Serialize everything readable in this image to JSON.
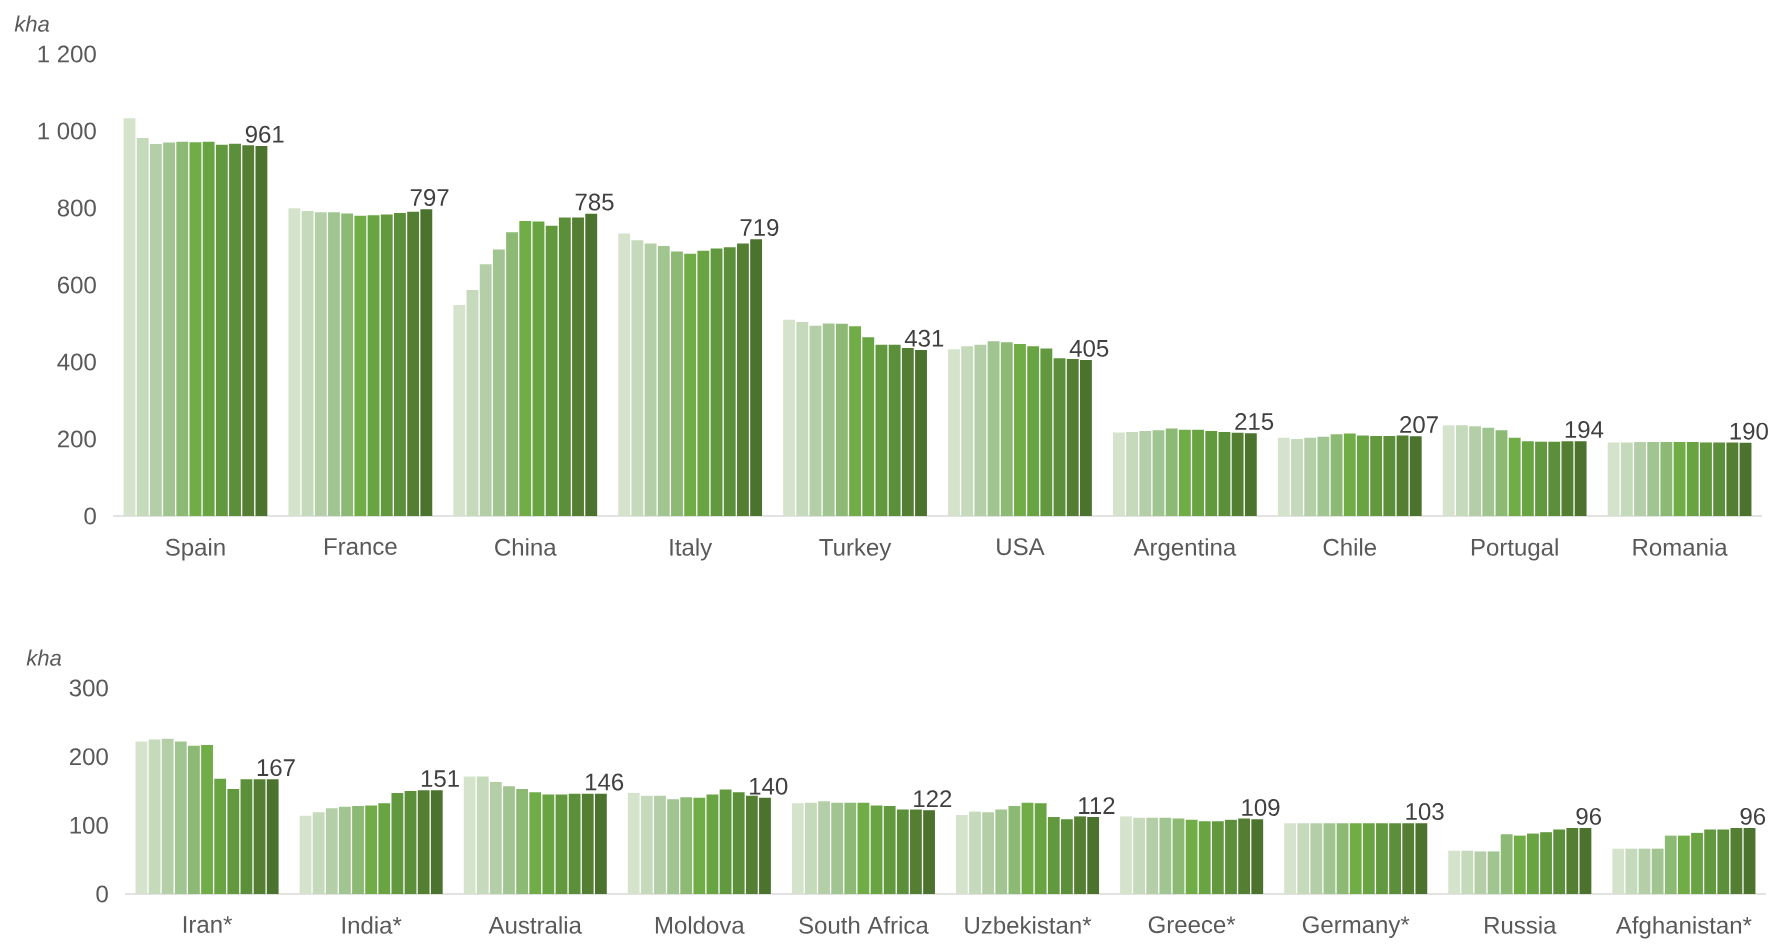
{
  "chart_data": [
    {
      "type": "bar",
      "ylabel": "*kha*",
      "categories": [
        "Spain",
        "France",
        "China",
        "Italy",
        "Turkey",
        "USA",
        "Argentina",
        "Chile",
        "Portugal",
        "Romania"
      ],
      "ylim": [
        0,
        1200
      ],
      "yticks": [
        0,
        200,
        400,
        600,
        800,
        {
          "value": 1000,
          "label": "1 000"
        },
        {
          "value": 1200,
          "label": "1 200"
        }
      ],
      "series": [
        {
          "color": "#d5e3cc",
          "values": [
            1033,
            799,
            548,
            734,
            510,
            433,
            217,
            203,
            236,
            191
          ]
        },
        {
          "color": "#c5d9bb",
          "values": [
            982,
            792,
            587,
            716,
            504,
            441,
            218,
            200,
            236,
            191
          ]
        },
        {
          "color": "#b4cfa7",
          "values": [
            966,
            789,
            654,
            708,
            494,
            445,
            221,
            203,
            233,
            192
          ]
        },
        {
          "color": "#a1c590",
          "values": [
            970,
            789,
            692,
            701,
            500,
            454,
            223,
            206,
            229,
            192
          ]
        },
        {
          "color": "#8cba74",
          "values": [
            972,
            786,
            737,
            687,
            499,
            451,
            227,
            212,
            223,
            192
          ]
        },
        {
          "color": "#70ad47",
          "values": [
            971,
            780,
            766,
            681,
            493,
            447,
            224,
            214,
            203,
            192
          ]
        },
        {
          "color": "#69a443",
          "values": [
            972,
            781,
            765,
            689,
            464,
            441,
            224,
            209,
            194,
            192
          ]
        },
        {
          "color": "#62983e",
          "values": [
            964,
            783,
            754,
            695,
            445,
            435,
            221,
            208,
            193,
            191
          ]
        },
        {
          "color": "#5c8f3a",
          "values": [
            967,
            787,
            775,
            698,
            445,
            410,
            218,
            208,
            193,
            191
          ]
        },
        {
          "color": "#547f33",
          "values": [
            963,
            790,
            775,
            708,
            436,
            408,
            216,
            209,
            194,
            191
          ]
        },
        {
          "color": "#4b732d",
          "values": [
            961,
            797,
            785,
            719,
            431,
            405,
            215,
            207,
            194,
            190
          ],
          "value_labels": [
            "961",
            "797",
            "785",
            "719",
            "431",
            "405",
            "215",
            "207",
            "194",
            "190"
          ]
        }
      ]
    },
    {
      "type": "bar",
      "ylabel": "*kha*",
      "categories": [
        "Iran*",
        "India*",
        "Australia",
        "Moldova",
        "South Africa",
        "Uzbekistan*",
        "Greece*",
        "Germany*",
        "Russia",
        "Afghanistan*"
      ],
      "ylim": [
        0,
        300
      ],
      "yticks": [
        0,
        100,
        200,
        300
      ],
      "series": [
        {
          "color": "#d5e3cc",
          "values": [
            222,
            114,
            171,
            147,
            132,
            115,
            113,
            103,
            63,
            66
          ]
        },
        {
          "color": "#c5d9bb",
          "values": [
            225,
            119,
            171,
            143,
            133,
            120,
            111,
            103,
            63,
            66
          ]
        },
        {
          "color": "#b4cfa7",
          "values": [
            226,
            125,
            163,
            143,
            135,
            119,
            111,
            103,
            62,
            66
          ]
        },
        {
          "color": "#a1c590",
          "values": [
            222,
            127,
            157,
            138,
            133,
            123,
            111,
            103,
            62,
            66
          ]
        },
        {
          "color": "#8cba74",
          "values": [
            216,
            128,
            153,
            141,
            133,
            128,
            110,
            103,
            87,
            85
          ]
        },
        {
          "color": "#70ad47",
          "values": [
            217,
            129,
            148,
            140,
            133,
            133,
            108,
            103,
            85,
            85
          ]
        },
        {
          "color": "#69a443",
          "values": [
            168,
            132,
            145,
            145,
            129,
            132,
            106,
            103,
            88,
            89
          ]
        },
        {
          "color": "#62983e",
          "values": [
            153,
            147,
            145,
            152,
            128,
            112,
            106,
            103,
            90,
            94
          ]
        },
        {
          "color": "#5c8f3a",
          "values": [
            167,
            150,
            146,
            148,
            123,
            109,
            108,
            103,
            94,
            94
          ]
        },
        {
          "color": "#547f33",
          "values": [
            167,
            151,
            146,
            143,
            123,
            113,
            110,
            103,
            96,
            96
          ]
        },
        {
          "color": "#4b732d",
          "values": [
            167,
            151,
            146,
            140,
            122,
            112,
            109,
            103,
            96,
            96
          ],
          "value_labels": [
            "167",
            "151",
            "146",
            "140",
            "122",
            "112",
            "109",
            "103",
            "96",
            "96"
          ]
        }
      ]
    }
  ]
}
